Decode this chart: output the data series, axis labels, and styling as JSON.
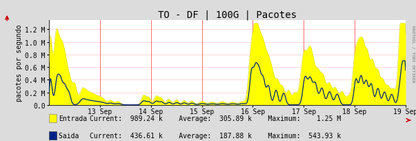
{
  "title": "TO - DF | 100G | Pacotes",
  "ylabel": "pacotes por segundo",
  "background_color": "#dcdcdc",
  "plot_bg_color": "#ffffff",
  "grid_color": "#ff9999",
  "axis_color": "#333333",
  "yticks_labels": [
    "0.0",
    "0.2 M",
    "0.4 M",
    "0.6 M",
    "0.8 M",
    "1.0 M",
    "1.2 M"
  ],
  "yticks_values": [
    0,
    200000,
    400000,
    600000,
    800000,
    1000000,
    1200000
  ],
  "ylim": [
    0,
    1350000
  ],
  "xticks_labels": [
    "13 Sep",
    "14 Sep",
    "15 Sep",
    "16 Sep",
    "17 Sep",
    "18 Sep",
    "19 Sep"
  ],
  "entrada_color": "#ffff00",
  "entrada_edge_color": "#c8c800",
  "saida_color": "#002288",
  "watermark": "RRDTOOL / TOBI OETIKER",
  "title_fontsize": 10,
  "label_fontsize": 7,
  "tick_fontsize": 7,
  "n_points": 600
}
